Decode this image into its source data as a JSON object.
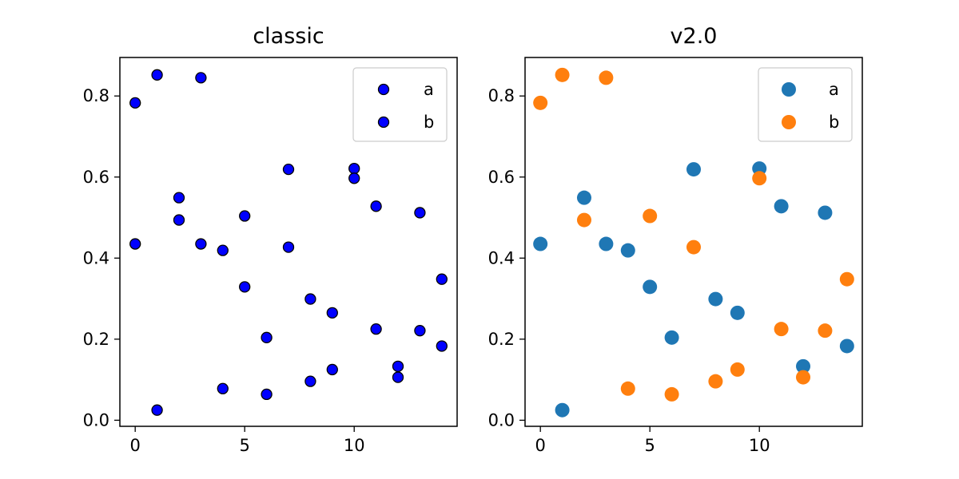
{
  "chart_data": [
    {
      "type": "scatter",
      "title": "classic",
      "xlabel": "",
      "ylabel": "",
      "xlim": [
        -0.7,
        14.7
      ],
      "ylim": [
        -0.015,
        0.895
      ],
      "xticks": [
        0,
        5,
        10
      ],
      "yticks": [
        0.0,
        0.2,
        0.4,
        0.6,
        0.8
      ],
      "xtick_labels": [
        "0",
        "5",
        "10"
      ],
      "ytick_labels": [
        "0.0",
        "0.2",
        "0.4",
        "0.6",
        "0.8"
      ],
      "legend": {
        "placement": "top-right"
      },
      "grid": false,
      "series": [
        {
          "name": "a",
          "color": "#0000ff",
          "edgecolor": "#000000",
          "x": [
            0,
            1,
            2,
            3,
            4,
            5,
            6,
            7,
            8,
            9,
            10,
            11,
            12,
            13,
            14
          ],
          "y": [
            0.435,
            0.025,
            0.549,
            0.435,
            0.419,
            0.329,
            0.204,
            0.619,
            0.299,
            0.265,
            0.621,
            0.528,
            0.133,
            0.512,
            0.183
          ]
        },
        {
          "name": "b",
          "color": "#0000ff",
          "edgecolor": "#000000",
          "x": [
            0,
            1,
            2,
            3,
            4,
            5,
            6,
            7,
            8,
            9,
            10,
            11,
            12,
            13,
            14
          ],
          "y": [
            0.783,
            0.852,
            0.494,
            0.845,
            0.078,
            0.504,
            0.064,
            0.427,
            0.096,
            0.125,
            0.597,
            0.225,
            0.106,
            0.221,
            0.348
          ]
        }
      ]
    },
    {
      "type": "scatter",
      "title": "v2.0",
      "xlabel": "",
      "ylabel": "",
      "xlim": [
        -0.7,
        14.7
      ],
      "ylim": [
        -0.015,
        0.895
      ],
      "xticks": [
        0,
        5,
        10
      ],
      "yticks": [
        0.0,
        0.2,
        0.4,
        0.6,
        0.8
      ],
      "xtick_labels": [
        "0",
        "5",
        "10"
      ],
      "ytick_labels": [
        "0.0",
        "0.2",
        "0.4",
        "0.6",
        "0.8"
      ],
      "legend": {
        "placement": "top-right"
      },
      "grid": false,
      "series": [
        {
          "name": "a",
          "color": "#1f77b4",
          "edgecolor": "",
          "x": [
            0,
            1,
            2,
            3,
            4,
            5,
            6,
            7,
            8,
            9,
            10,
            11,
            12,
            13,
            14
          ],
          "y": [
            0.435,
            0.025,
            0.549,
            0.435,
            0.419,
            0.329,
            0.204,
            0.619,
            0.299,
            0.265,
            0.621,
            0.528,
            0.133,
            0.512,
            0.183
          ]
        },
        {
          "name": "b",
          "color": "#ff7f0e",
          "edgecolor": "",
          "x": [
            0,
            1,
            2,
            3,
            4,
            5,
            6,
            7,
            8,
            9,
            10,
            11,
            12,
            13,
            14
          ],
          "y": [
            0.783,
            0.852,
            0.494,
            0.845,
            0.078,
            0.504,
            0.064,
            0.427,
            0.096,
            0.125,
            0.597,
            0.225,
            0.106,
            0.221,
            0.348
          ]
        }
      ]
    }
  ]
}
